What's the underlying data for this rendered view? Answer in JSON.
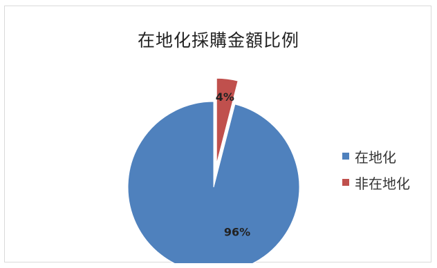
{
  "chart_data": {
    "type": "pie",
    "title": "在地化採購金額比例",
    "slices": [
      {
        "label": "在地化",
        "value": 96,
        "data_label": "96%",
        "color": "#4f81bd",
        "exploded": false
      },
      {
        "label": "非在地化",
        "value": 4,
        "data_label": "4%",
        "color": "#c0504d",
        "exploded": true
      }
    ],
    "legend_placement": "right"
  }
}
